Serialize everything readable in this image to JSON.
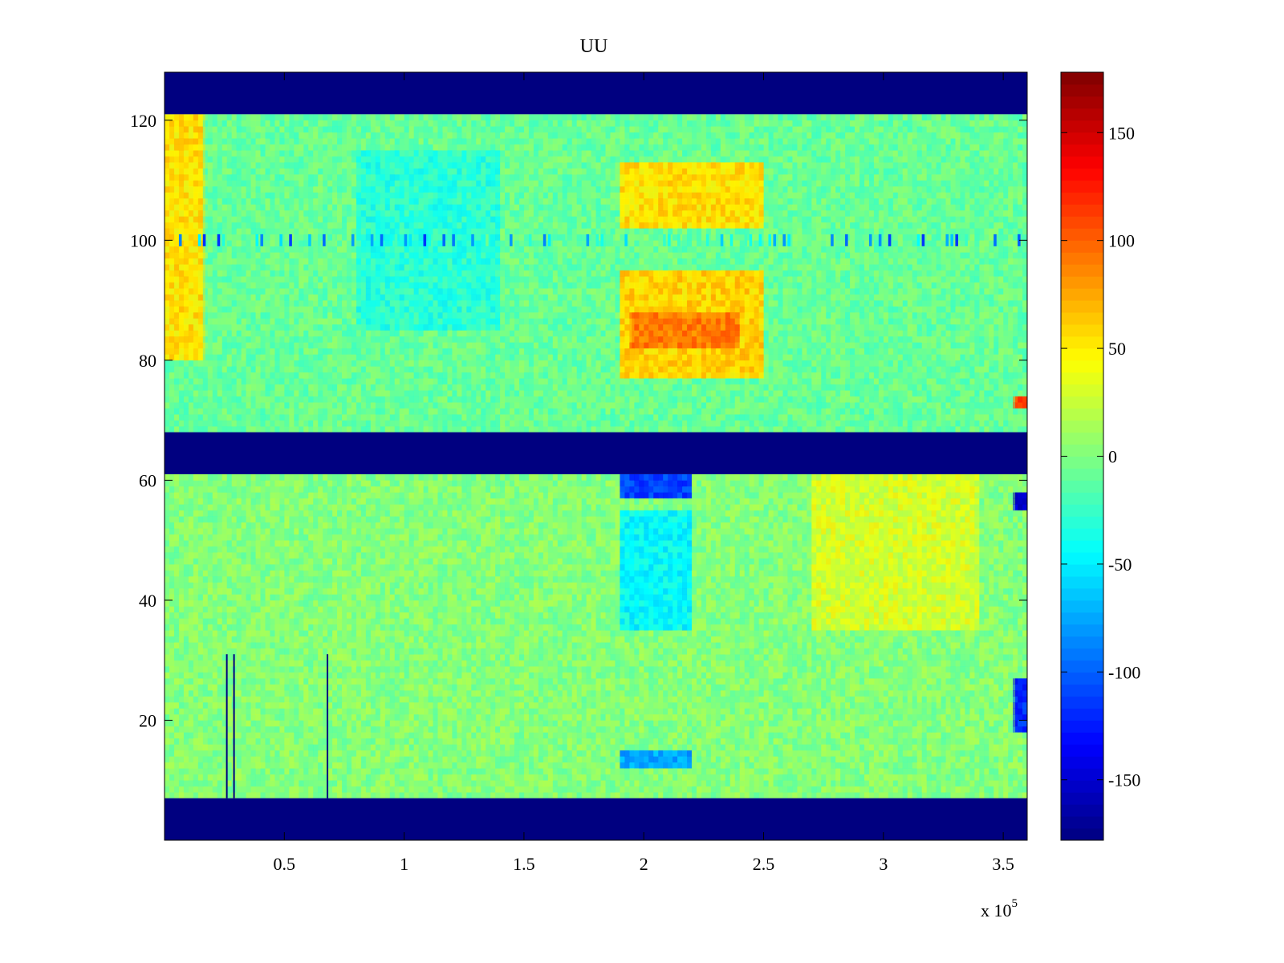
{
  "chart_data": {
    "type": "heatmap",
    "title": "UU",
    "xlabel": "",
    "ylabel": "",
    "x_exponent_label": {
      "base": "x 10",
      "power": "5"
    },
    "xlim": [
      0,
      360000
    ],
    "ylim": [
      0,
      128
    ],
    "x_ticks": [
      {
        "value": 50000,
        "label": "0.5"
      },
      {
        "value": 100000,
        "label": "1"
      },
      {
        "value": 150000,
        "label": "1.5"
      },
      {
        "value": 200000,
        "label": "2"
      },
      {
        "value": 250000,
        "label": "2.5"
      },
      {
        "value": 300000,
        "label": "3"
      },
      {
        "value": 350000,
        "label": "3.5"
      }
    ],
    "y_ticks": [
      {
        "value": 20,
        "label": "20"
      },
      {
        "value": 40,
        "label": "40"
      },
      {
        "value": 60,
        "label": "60"
      },
      {
        "value": 80,
        "label": "80"
      },
      {
        "value": 100,
        "label": "100"
      },
      {
        "value": 120,
        "label": "120"
      }
    ],
    "colorbar": {
      "colormap": "jet",
      "clim": [
        -178,
        178
      ],
      "ticks": [
        {
          "value": 150,
          "label": "150"
        },
        {
          "value": 100,
          "label": "100"
        },
        {
          "value": 50,
          "label": "50"
        },
        {
          "value": 0,
          "label": "0"
        },
        {
          "value": -50,
          "label": "-50"
        },
        {
          "value": -100,
          "label": "-100"
        },
        {
          "value": -150,
          "label": "-150"
        }
      ]
    },
    "masked_rows": [
      {
        "y_from": 0,
        "y_to": 7,
        "value": -178
      },
      {
        "y_from": 61,
        "y_to": 68,
        "value": -178
      },
      {
        "y_from": 121,
        "y_to": 128,
        "value": -178
      }
    ],
    "regions": [
      {
        "x_from": 0,
        "x_to": 360000,
        "y_from": 68,
        "y_to": 121,
        "value": -8
      },
      {
        "x_from": 0,
        "x_to": 360000,
        "y_from": 7,
        "y_to": 61,
        "value": 2
      },
      {
        "x_from": 0,
        "x_to": 17000,
        "y_from": 80,
        "y_to": 121,
        "value": 55
      },
      {
        "x_from": 190000,
        "x_to": 250000,
        "y_from": 102,
        "y_to": 113,
        "value": 55
      },
      {
        "x_from": 190000,
        "x_to": 250000,
        "y_from": 77,
        "y_to": 95,
        "value": 60
      },
      {
        "x_from": 195000,
        "x_to": 240000,
        "y_from": 82,
        "y_to": 88,
        "value": 90
      },
      {
        "x_from": 190000,
        "x_to": 220000,
        "y_from": 57,
        "y_to": 61,
        "value": -110
      },
      {
        "x_from": 190000,
        "x_to": 220000,
        "y_from": 12,
        "y_to": 15,
        "value": -75
      },
      {
        "x_from": 190000,
        "x_to": 220000,
        "y_from": 35,
        "y_to": 55,
        "value": -45
      },
      {
        "x_from": 80000,
        "x_to": 140000,
        "y_from": 85,
        "y_to": 115,
        "value": -30
      },
      {
        "x_from": 270000,
        "x_to": 340000,
        "y_from": 35,
        "y_to": 61,
        "value": 30
      },
      {
        "x_from": 355000,
        "x_to": 360000,
        "y_from": 55,
        "y_to": 58,
        "value": -150
      },
      {
        "x_from": 355000,
        "x_to": 360000,
        "y_from": 18,
        "y_to": 27,
        "value": -120
      },
      {
        "x_from": 355000,
        "x_to": 360000,
        "y_from": 72,
        "y_to": 74,
        "value": 110
      }
    ],
    "vertical_streaks": [
      {
        "x": 26000,
        "y_from": 7,
        "y_to": 31,
        "value": -178
      },
      {
        "x": 29000,
        "y_from": 7,
        "y_to": 31,
        "value": -178
      },
      {
        "x": 68000,
        "y_from": 7,
        "y_to": 31,
        "value": -178
      }
    ],
    "horizontal_streaks": [
      {
        "y": 100,
        "value": -60
      }
    ]
  }
}
